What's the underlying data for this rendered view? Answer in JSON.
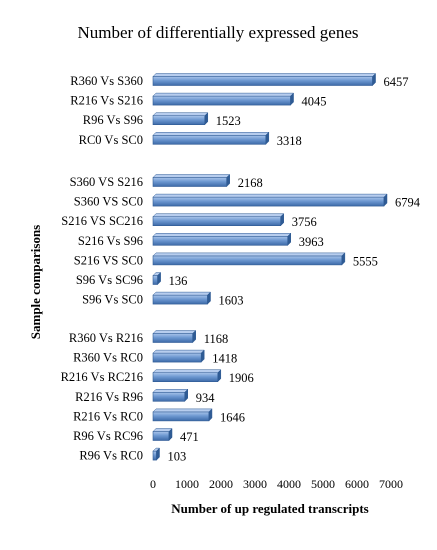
{
  "chart_data": {
    "type": "bar",
    "orientation": "horizontal",
    "title": "Number of differentially expressed genes",
    "xlabel": "Number of up regulated transcripts",
    "ylabel": "Sample comparisons",
    "xlim": [
      0,
      7000
    ],
    "x_ticks": [
      0,
      1000,
      2000,
      3000,
      4000,
      5000,
      6000,
      7000
    ],
    "grid": false,
    "bar_color": "#4f81bd",
    "groups": [
      {
        "categories": [
          "R360 Vs S360",
          "R216 Vs S216",
          "R96 Vs S96",
          "RC0 Vs SC0"
        ],
        "values": [
          6457,
          4045,
          1523,
          3318
        ]
      },
      {
        "categories": [
          "S360 VS S216",
          "S360 VS SC0",
          "S216 VS SC216",
          "S216 Vs S96",
          "S216 VS SC0",
          "S96 Vs SC96",
          "S96 Vs SC0"
        ],
        "values": [
          2168,
          6794,
          3756,
          3963,
          5555,
          136,
          1603
        ]
      },
      {
        "categories": [
          "R360 Vs R216",
          "R360 Vs RC0",
          "R216 Vs RC216",
          "R216 Vs R96",
          "R216 Vs RC0",
          "R96 Vs RC96",
          "R96 Vs RC0"
        ],
        "values": [
          1168,
          1418,
          1906,
          934,
          1646,
          471,
          103
        ]
      }
    ]
  }
}
